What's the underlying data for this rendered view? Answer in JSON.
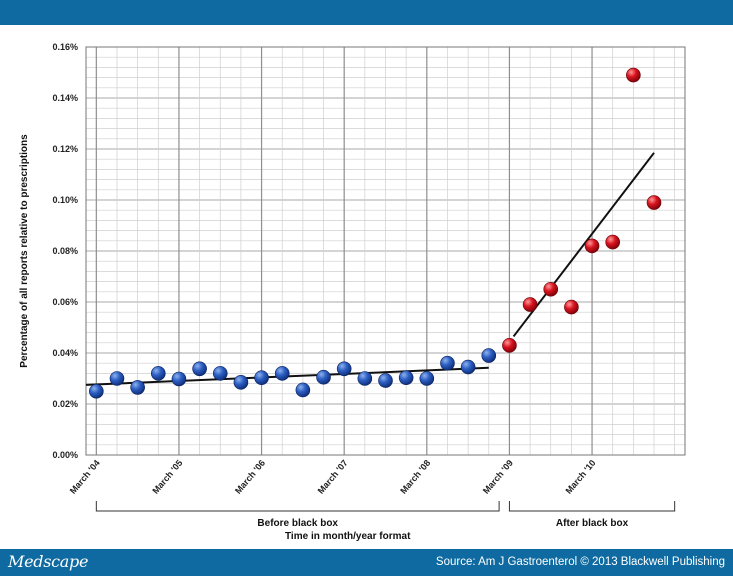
{
  "footer": {
    "brand": "Medscape",
    "source": "Source: Am J Gastroenterol © 2013 Blackwell Publishing"
  },
  "chart_data": {
    "type": "scatter",
    "title": "",
    "xlabel": "Time in month/year format",
    "ylabel": "Percentage of all reports relative to prescriptions",
    "ylim": [
      0,
      0.16
    ],
    "y_ticks": [
      "0.00%",
      "0.02%",
      "0.04%",
      "0.06%",
      "0.08%",
      "0.10%",
      "0.12%",
      "0.14%",
      "0.16%"
    ],
    "x_ticks": [
      {
        "label": "March '04",
        "index": 0
      },
      {
        "label": "March '05",
        "index": 4
      },
      {
        "label": "March '06",
        "index": 8
      },
      {
        "label": "March '07",
        "index": 12
      },
      {
        "label": "March '08",
        "index": 16
      },
      {
        "label": "March '09",
        "index": 20
      },
      {
        "label": "March '10",
        "index": 24
      }
    ],
    "xlim": [
      -0.5,
      28.5
    ],
    "grid": true,
    "phase_labels": [
      {
        "label": "Before black box",
        "start": 0,
        "end": 19.5
      },
      {
        "label": "After black box",
        "start": 20,
        "end": 28
      }
    ],
    "series": [
      {
        "name": "Before black box",
        "color": "#1f4aa8",
        "points": [
          [
            0,
            0.025
          ],
          [
            1,
            0.03
          ],
          [
            2,
            0.0265
          ],
          [
            3,
            0.032
          ],
          [
            4,
            0.0298
          ],
          [
            5,
            0.0338
          ],
          [
            6,
            0.032
          ],
          [
            7,
            0.0285
          ],
          [
            8,
            0.0303
          ],
          [
            9,
            0.032
          ],
          [
            10,
            0.0255
          ],
          [
            11,
            0.0305
          ],
          [
            12,
            0.0338
          ],
          [
            13,
            0.03
          ],
          [
            14,
            0.0292
          ],
          [
            15,
            0.0303
          ],
          [
            16,
            0.03
          ],
          [
            17,
            0.036
          ],
          [
            18,
            0.0345
          ],
          [
            19,
            0.039
          ]
        ],
        "trend": [
          [
            -0.5,
            0.0275
          ],
          [
            19,
            0.0342
          ]
        ]
      },
      {
        "name": "After black box",
        "color": "#c8101e",
        "points": [
          [
            20,
            0.043
          ],
          [
            21,
            0.059
          ],
          [
            22,
            0.065
          ],
          [
            23,
            0.058
          ],
          [
            24,
            0.082
          ],
          [
            25,
            0.0835
          ],
          [
            26,
            0.149
          ],
          [
            27,
            0.099
          ]
        ],
        "trend": [
          [
            20.2,
            0.0465
          ],
          [
            27,
            0.1185
          ]
        ]
      }
    ]
  }
}
